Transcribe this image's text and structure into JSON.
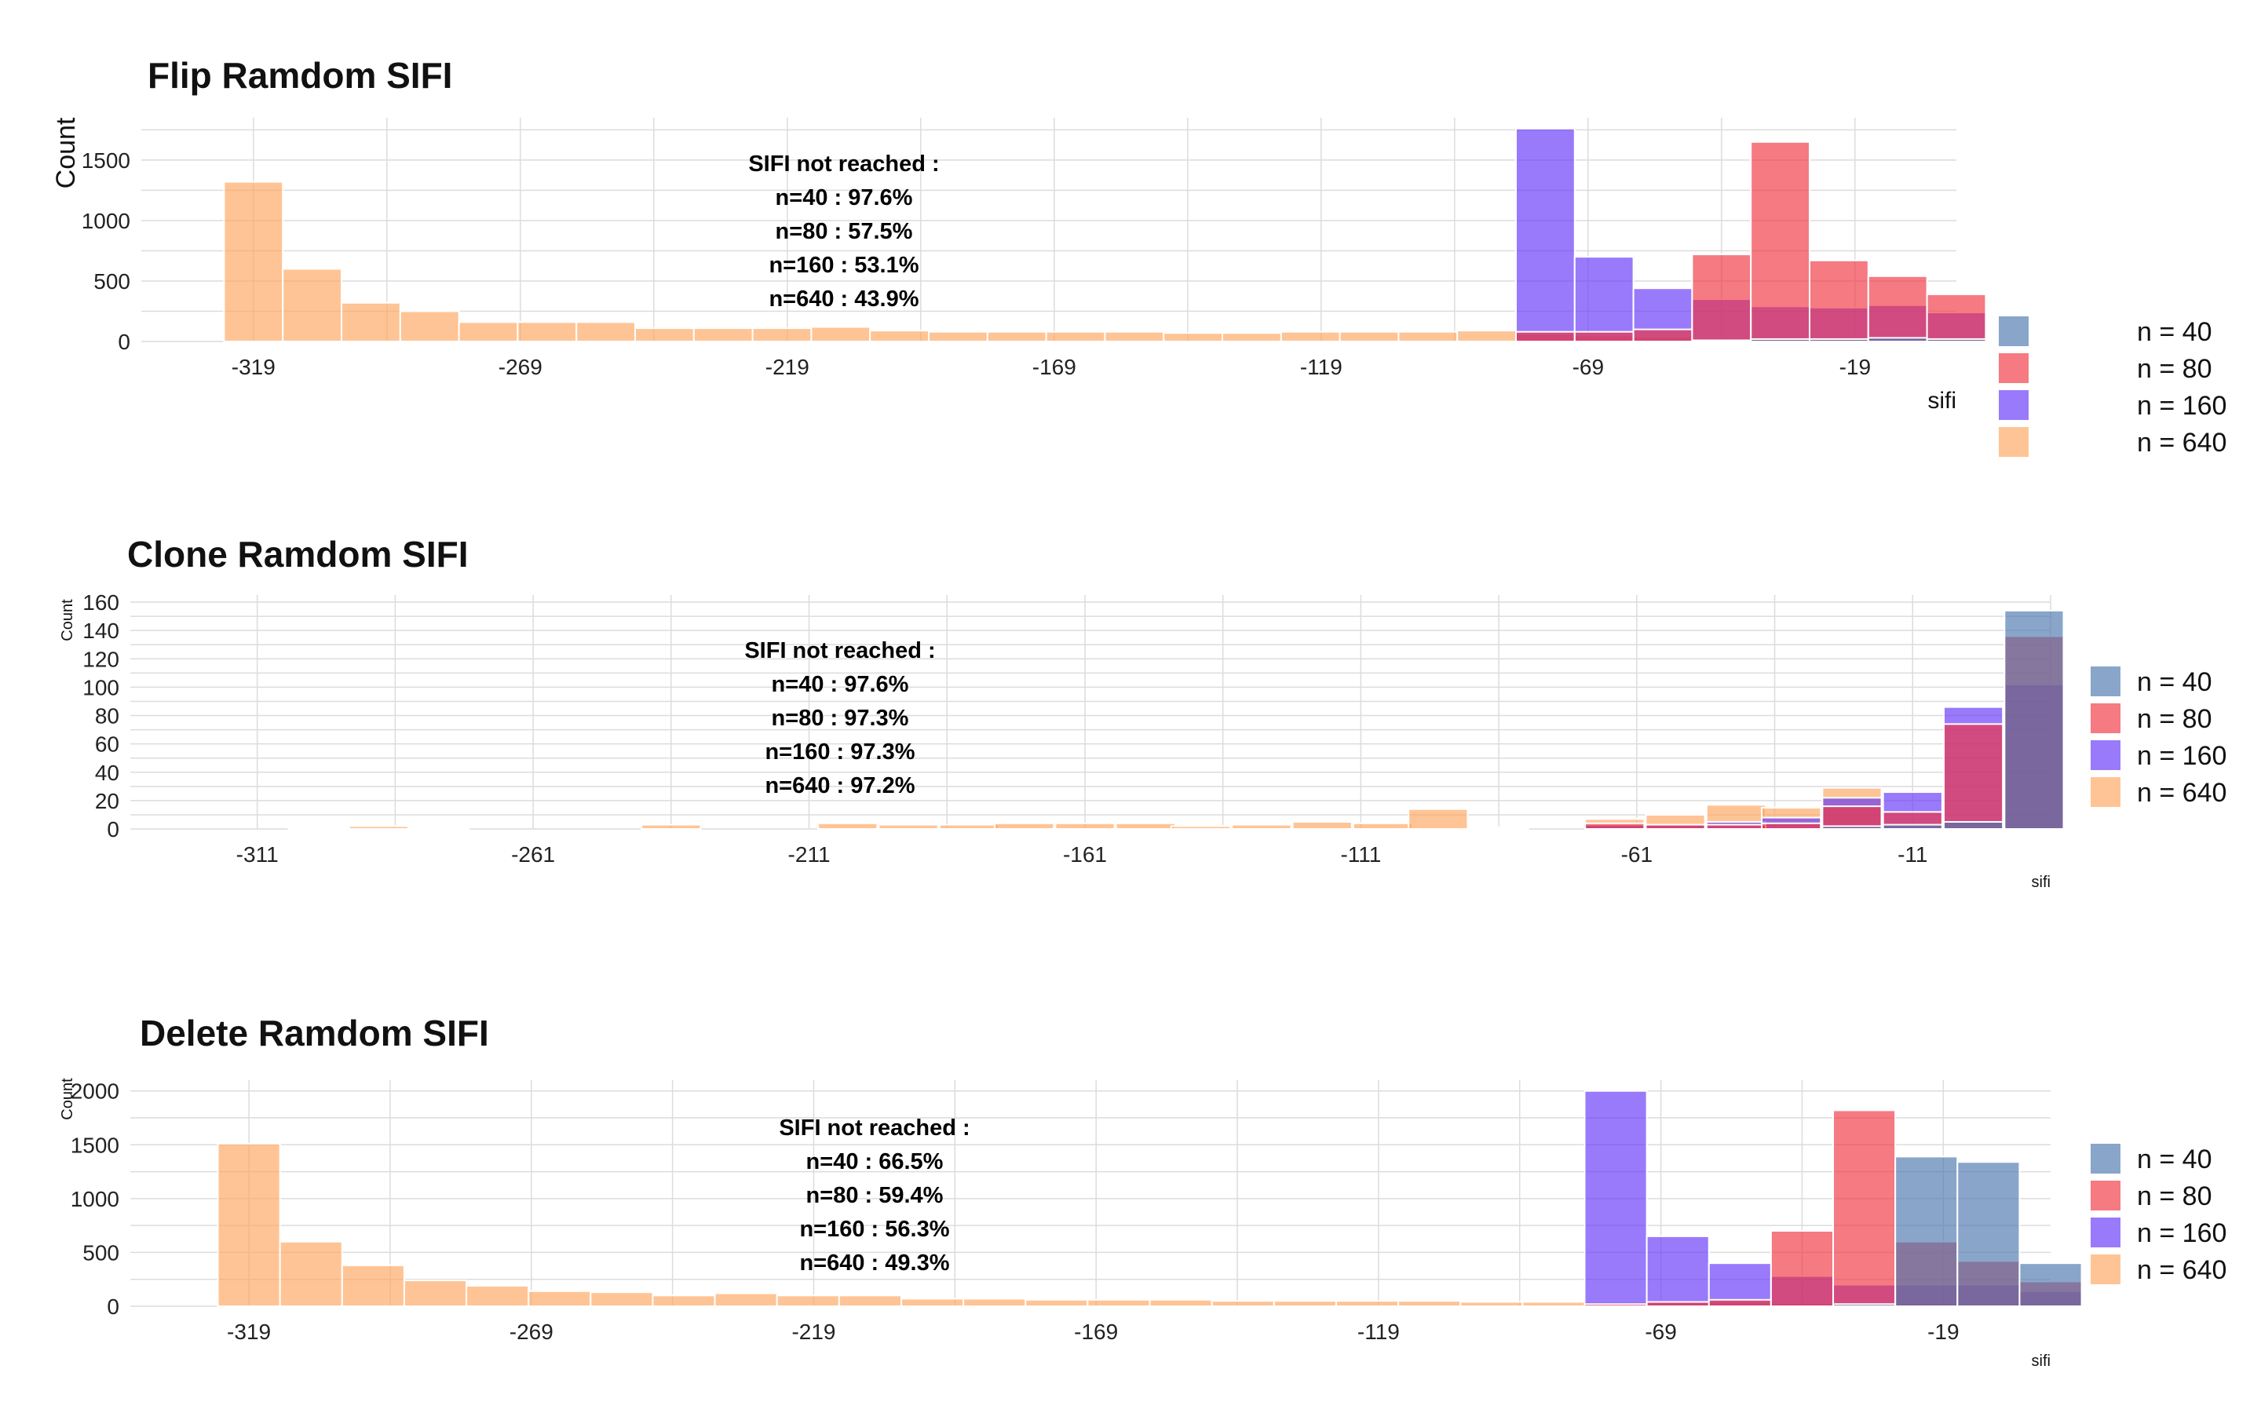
{
  "colors": {
    "n40": "#4A76AE",
    "n80": "#F0333F",
    "n160": "#6233F7",
    "n640": "#FFA45C",
    "grid": "#dcdcdc",
    "text": "#222222"
  },
  "chart_data": [
    {
      "type": "bar",
      "title": "Flip Ramdom SIFI",
      "ylabel": "Count",
      "xlabel": "sifi",
      "ylim": [
        0,
        1850
      ],
      "y_ticks": [
        0,
        500,
        1000,
        1500
      ],
      "x_ticks": [
        -319,
        -269,
        -219,
        -169,
        -119,
        -69,
        -19
      ],
      "xlim": [
        -340,
        0
      ],
      "bin_width": 11,
      "legend": {
        "position": "right",
        "entries": [
          "n = 40",
          "n = 80",
          "n = 160",
          "n = 640"
        ]
      },
      "annotation": [
        "SIFI not reached :",
        "n=40 : 97.6%",
        "n=80 : 57.5%",
        "n=160 : 53.1%",
        "n=640 : 43.9%"
      ],
      "series": [
        {
          "name": "n = 640",
          "key": "n640",
          "x": [
            -319,
            -308,
            -297,
            -286,
            -275,
            -264,
            -253,
            -242,
            -231,
            -220,
            -209,
            -198,
            -187,
            -176,
            -165,
            -154,
            -143,
            -132,
            -121,
            -110,
            -99,
            -88,
            -77,
            -66,
            -55,
            -44,
            -33,
            -22,
            -11
          ],
          "values": [
            1320,
            600,
            320,
            250,
            160,
            160,
            160,
            110,
            110,
            110,
            120,
            90,
            80,
            80,
            80,
            80,
            70,
            70,
            80,
            80,
            80,
            90,
            60,
            50,
            40,
            30,
            30,
            30,
            30
          ]
        },
        {
          "name": "n = 160",
          "key": "n160",
          "x": [
            -77,
            -66,
            -55,
            -44,
            -33,
            -22,
            -11,
            0
          ],
          "values": [
            1760,
            700,
            440,
            350,
            290,
            280,
            300,
            240
          ]
        },
        {
          "name": "n = 80",
          "key": "n80",
          "x": [
            -77,
            -66,
            -55,
            -44,
            -33,
            -22,
            -11,
            0
          ],
          "values": [
            80,
            80,
            100,
            720,
            1650,
            670,
            540,
            390
          ]
        },
        {
          "name": "n = 40",
          "key": "n40",
          "x": [
            -44,
            -33,
            -22,
            -11,
            0
          ],
          "values": [
            10,
            20,
            20,
            30,
            20
          ]
        }
      ]
    },
    {
      "type": "bar",
      "title": "Clone Ramdom SIFI",
      "ylabel": "Count",
      "xlabel": "sifi",
      "ylim": [
        0,
        165
      ],
      "y_ticks": [
        0,
        20,
        40,
        60,
        80,
        100,
        120,
        140,
        160
      ],
      "x_ticks": [
        -311,
        -261,
        -211,
        -161,
        -111,
        -61,
        -11
      ],
      "xlim": [
        -334,
        14
      ],
      "bin_width": 10.7,
      "legend": {
        "position": "right",
        "entries": [
          "n = 40",
          "n = 80",
          "n = 160",
          "n = 640"
        ]
      },
      "annotation": [
        "SIFI not reached :",
        "n=40 : 97.6%",
        "n=80 : 97.3%",
        "n=160 : 97.3%",
        "n=640 : 97.2%"
      ],
      "series": [
        {
          "name": "n = 640",
          "key": "n640",
          "x": [
            -300,
            -289,
            -278,
            -236,
            -204,
            -193,
            -182,
            -172,
            -161,
            -150,
            -140,
            -129,
            -118,
            -107,
            -97,
            -86,
            -65,
            -54,
            -43,
            -33,
            -22
          ],
          "values": [
            1,
            2,
            1,
            3,
            4,
            3,
            3,
            4,
            4,
            4,
            2,
            3,
            5,
            4,
            14,
            1,
            7,
            10,
            17,
            15,
            29
          ]
        },
        {
          "name": "n = 160",
          "key": "n160",
          "x": [
            -65,
            -54,
            -43,
            -33,
            -22,
            -11,
            0,
            11
          ],
          "values": [
            3,
            3,
            5,
            8,
            22,
            26,
            86,
            102
          ]
        },
        {
          "name": "n = 80",
          "key": "n80",
          "x": [
            -65,
            -54,
            -43,
            -33,
            -22,
            -11,
            0,
            11
          ],
          "values": [
            4,
            3,
            3,
            4,
            16,
            12,
            74,
            136
          ]
        },
        {
          "name": "n = 40",
          "key": "n40",
          "x": [
            -22,
            -11,
            0,
            11
          ],
          "values": [
            2,
            3,
            5,
            154
          ]
        }
      ]
    },
    {
      "type": "bar",
      "title": "Delete Ramdom SIFI",
      "ylabel": "Count",
      "xlabel": "sifi",
      "ylim": [
        0,
        2100
      ],
      "y_ticks": [
        0,
        500,
        1000,
        1500,
        2000
      ],
      "x_ticks": [
        -319,
        -269,
        -219,
        -169,
        -119,
        -69,
        -19
      ],
      "xlim": [
        -340,
        0
      ],
      "bin_width": 11,
      "legend": {
        "position": "right",
        "entries": [
          "n = 40",
          "n = 80",
          "n = 160",
          "n = 640"
        ]
      },
      "annotation": [
        "SIFI not reached :",
        "n=40 : 66.5%",
        "n=80 : 59.4%",
        "n=160 : 56.3%",
        "n=640 : 49.3%"
      ],
      "series": [
        {
          "name": "n = 640",
          "key": "n640",
          "x": [
            -319,
            -308,
            -297,
            -286,
            -275,
            -264,
            -253,
            -242,
            -231,
            -220,
            -209,
            -198,
            -187,
            -176,
            -165,
            -154,
            -143,
            -132,
            -121,
            -110,
            -99,
            -88,
            -77,
            -66,
            -55,
            -44,
            -33,
            -22,
            -11
          ],
          "values": [
            1510,
            600,
            380,
            240,
            190,
            140,
            130,
            100,
            120,
            100,
            100,
            70,
            70,
            60,
            60,
            60,
            50,
            50,
            50,
            50,
            40,
            40,
            40,
            40,
            40,
            30,
            30,
            30,
            20
          ]
        },
        {
          "name": "n = 160",
          "key": "n160",
          "x": [
            -77,
            -66,
            -55,
            -44,
            -33,
            -22,
            -11,
            0
          ],
          "values": [
            2000,
            650,
            400,
            280,
            200,
            200,
            200,
            140
          ]
        },
        {
          "name": "n = 80",
          "key": "n80",
          "x": [
            -77,
            -66,
            -55,
            -44,
            -33,
            -22,
            -11,
            0
          ],
          "values": [
            20,
            40,
            60,
            700,
            1820,
            600,
            420,
            230
          ]
        },
        {
          "name": "n = 40",
          "key": "n40",
          "x": [
            -33,
            -22,
            -11,
            0
          ],
          "values": [
            20,
            1390,
            1340,
            400
          ]
        }
      ]
    }
  ]
}
